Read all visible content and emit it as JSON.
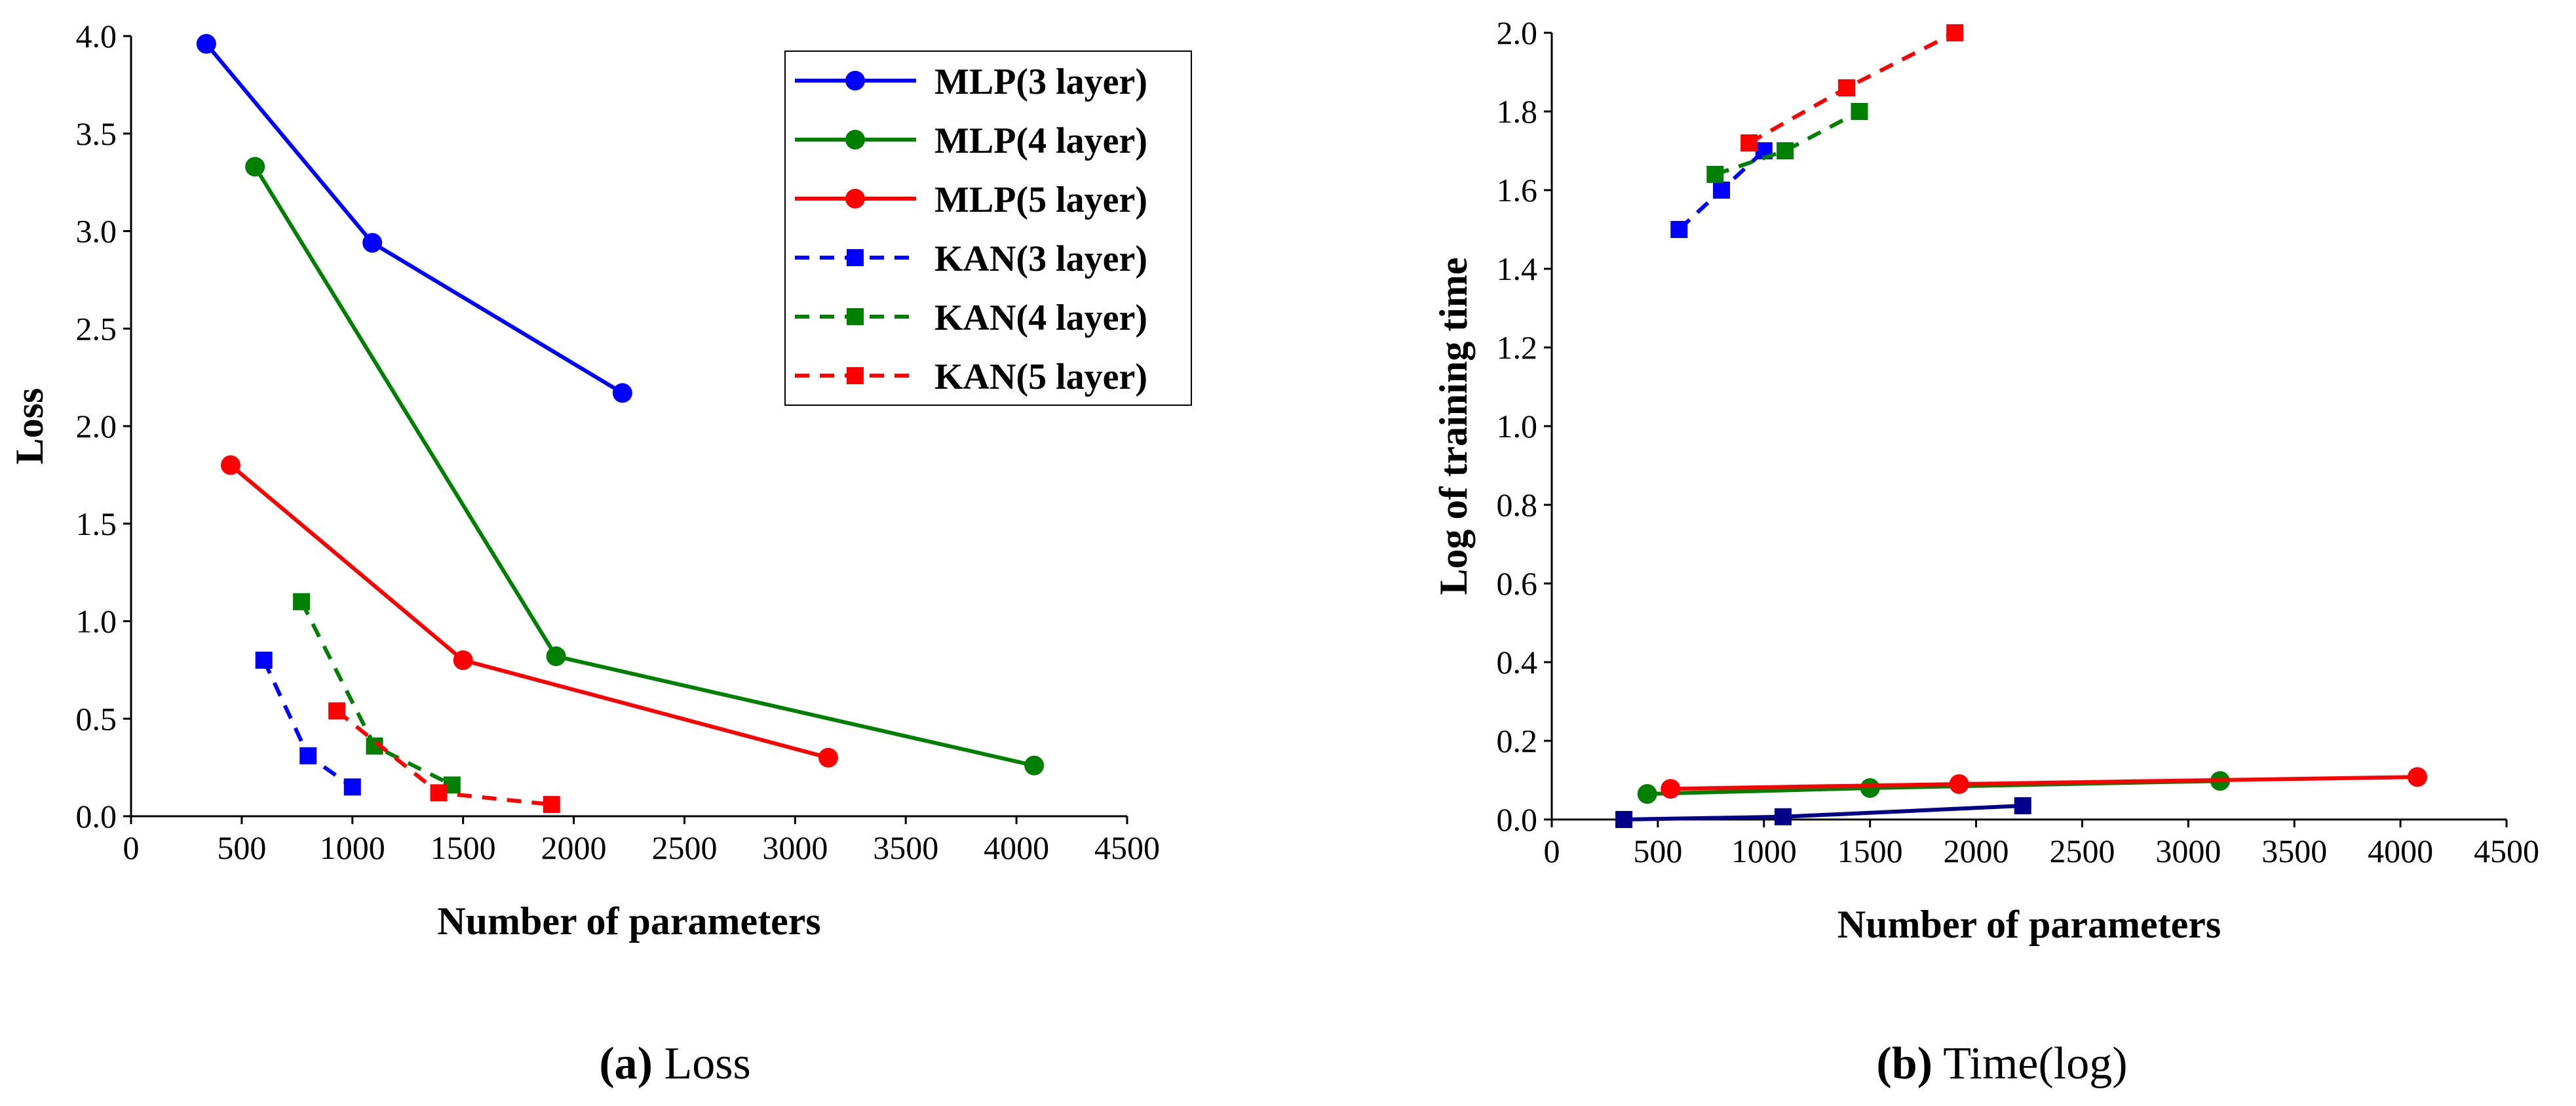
{
  "figure": {
    "captions": [
      {
        "letter": "(a)",
        "text": " Loss"
      },
      {
        "letter": "(b)",
        "text": " Time(log)"
      }
    ]
  },
  "chart_data": [
    {
      "type": "line",
      "xlabel": "Number of parameters",
      "ylabel": "Loss",
      "xlim": [
        0,
        4500
      ],
      "ylim": [
        0,
        4
      ],
      "xticks": [
        "0",
        "500",
        "1000",
        "1500",
        "2000",
        "2500",
        "3000",
        "3500",
        "4000",
        "4500"
      ],
      "yticks": [
        "0.0",
        "0.5",
        "1.0",
        "1.5",
        "2.0",
        "2.5",
        "3.0",
        "3.5",
        "4.0"
      ],
      "legend_position": "top-right",
      "series": [
        {
          "name": "MLP(3 layer)",
          "color": "#0000ff",
          "style": "solid",
          "marker": "circle",
          "points": [
            [
              340,
              3.96
            ],
            [
              1090,
              2.94
            ],
            [
              2220,
              2.17
            ]
          ]
        },
        {
          "name": "MLP(4 layer)",
          "color": "#008000",
          "style": "solid",
          "marker": "circle",
          "points": [
            [
              560,
              3.33
            ],
            [
              1920,
              0.82
            ],
            [
              4080,
              0.26
            ]
          ]
        },
        {
          "name": "MLP(5 layer)",
          "color": "#ff0000",
          "style": "solid",
          "marker": "circle",
          "points": [
            [
              450,
              1.8
            ],
            [
              1500,
              0.8
            ],
            [
              3150,
              0.3
            ]
          ]
        },
        {
          "name": "KAN(3 layer)",
          "color": "#0000ff",
          "style": "dashed",
          "marker": "square",
          "points": [
            [
              600,
              0.8
            ],
            [
              800,
              0.31
            ],
            [
              1000,
              0.15
            ]
          ]
        },
        {
          "name": "KAN(4 layer)",
          "color": "#008000",
          "style": "dashed",
          "marker": "square",
          "points": [
            [
              770,
              1.1
            ],
            [
              1100,
              0.36
            ],
            [
              1450,
              0.16
            ]
          ]
        },
        {
          "name": "KAN(5 layer)",
          "color": "#ff0000",
          "style": "dashed",
          "marker": "square",
          "points": [
            [
              930,
              0.54
            ],
            [
              1390,
              0.12
            ],
            [
              1900,
              0.06
            ]
          ]
        }
      ]
    },
    {
      "type": "line",
      "xlabel": "Number of parameters",
      "ylabel": "Log of training time",
      "xlim": [
        0,
        4500
      ],
      "ylim": [
        0,
        2
      ],
      "xticks": [
        "0",
        "500",
        "1000",
        "1500",
        "2000",
        "2500",
        "3000",
        "3500",
        "4000",
        "4500"
      ],
      "yticks": [
        "0.0",
        "0.2",
        "0.4",
        "0.6",
        "0.8",
        "1.0",
        "1.2",
        "1.4",
        "1.6",
        "1.8",
        "2.0"
      ],
      "series": [
        {
          "color": "#00008b",
          "style": "solid",
          "marker": "square",
          "points": [
            [
              340,
              0.0
            ],
            [
              1090,
              0.007
            ],
            [
              2220,
              0.035
            ]
          ]
        },
        {
          "color": "#008000",
          "style": "solid",
          "marker": "circle",
          "points": [
            [
              450,
              0.065
            ],
            [
              1500,
              0.08
            ],
            [
              3150,
              0.098
            ]
          ]
        },
        {
          "color": "#ff0000",
          "style": "solid",
          "marker": "circle",
          "points": [
            [
              560,
              0.078
            ],
            [
              1920,
              0.09
            ],
            [
              4080,
              0.108
            ]
          ]
        },
        {
          "color": "#0000ff",
          "style": "dashed",
          "marker": "square",
          "points": [
            [
              600,
              1.5
            ],
            [
              800,
              1.6
            ],
            [
              1000,
              1.7
            ]
          ]
        },
        {
          "color": "#008000",
          "style": "dashed",
          "marker": "square",
          "points": [
            [
              770,
              1.64
            ],
            [
              1100,
              1.7
            ],
            [
              1450,
              1.8
            ]
          ]
        },
        {
          "color": "#ff0000",
          "style": "dashed",
          "marker": "square",
          "points": [
            [
              930,
              1.72
            ],
            [
              1390,
              1.86
            ],
            [
              1900,
              2.0
            ]
          ]
        }
      ]
    }
  ]
}
